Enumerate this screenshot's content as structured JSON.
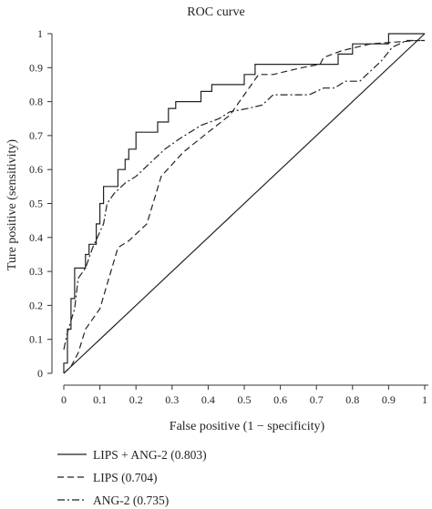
{
  "chart_data": {
    "type": "line",
    "title": "ROC curve",
    "xlabel": "False positive (1 − specificity)",
    "ylabel": "Ture positive (sensitivity)",
    "xlim": [
      0,
      1
    ],
    "ylim": [
      0,
      1
    ],
    "x_ticks": [
      "0",
      "0.1",
      "0.2",
      "0.3",
      "0.4",
      "0.5",
      "0.6",
      "0.7",
      "0.8",
      "0.9",
      "1"
    ],
    "y_ticks": [
      "0",
      "0.1",
      "0.2",
      "0.3",
      "0.4",
      "0.5",
      "0.6",
      "0.7",
      "0.8",
      "0.9",
      "1"
    ],
    "grid": false,
    "legend_position": "bottom-left",
    "series": [
      {
        "name": "LIPS + ANG-2 (0.803)",
        "style": "solid",
        "color": "#222222",
        "points": [
          [
            0,
            0
          ],
          [
            0,
            0.03
          ],
          [
            0.01,
            0.03
          ],
          [
            0.01,
            0.13
          ],
          [
            0.02,
            0.13
          ],
          [
            0.02,
            0.22
          ],
          [
            0.03,
            0.22
          ],
          [
            0.03,
            0.31
          ],
          [
            0.06,
            0.31
          ],
          [
            0.06,
            0.35
          ],
          [
            0.07,
            0.35
          ],
          [
            0.07,
            0.38
          ],
          [
            0.09,
            0.38
          ],
          [
            0.09,
            0.44
          ],
          [
            0.1,
            0.44
          ],
          [
            0.1,
            0.5
          ],
          [
            0.11,
            0.5
          ],
          [
            0.11,
            0.55
          ],
          [
            0.15,
            0.55
          ],
          [
            0.15,
            0.6
          ],
          [
            0.17,
            0.6
          ],
          [
            0.17,
            0.63
          ],
          [
            0.18,
            0.63
          ],
          [
            0.18,
            0.66
          ],
          [
            0.2,
            0.66
          ],
          [
            0.2,
            0.71
          ],
          [
            0.26,
            0.71
          ],
          [
            0.26,
            0.74
          ],
          [
            0.29,
            0.74
          ],
          [
            0.29,
            0.78
          ],
          [
            0.31,
            0.78
          ],
          [
            0.31,
            0.8
          ],
          [
            0.38,
            0.8
          ],
          [
            0.38,
            0.83
          ],
          [
            0.41,
            0.83
          ],
          [
            0.41,
            0.85
          ],
          [
            0.5,
            0.85
          ],
          [
            0.5,
            0.88
          ],
          [
            0.53,
            0.88
          ],
          [
            0.53,
            0.91
          ],
          [
            0.76,
            0.91
          ],
          [
            0.76,
            0.94
          ],
          [
            0.8,
            0.94
          ],
          [
            0.8,
            0.97
          ],
          [
            0.9,
            0.97
          ],
          [
            0.9,
            1
          ],
          [
            1,
            1
          ]
        ]
      },
      {
        "name": "LIPS (0.704)",
        "style": "dashed",
        "color": "#222222",
        "points": [
          [
            0,
            0
          ],
          [
            0.02,
            0.02
          ],
          [
            0.04,
            0.06
          ],
          [
            0.06,
            0.13
          ],
          [
            0.1,
            0.19
          ],
          [
            0.15,
            0.37
          ],
          [
            0.18,
            0.39
          ],
          [
            0.23,
            0.44
          ],
          [
            0.27,
            0.58
          ],
          [
            0.33,
            0.65
          ],
          [
            0.4,
            0.71
          ],
          [
            0.46,
            0.76
          ],
          [
            0.5,
            0.82
          ],
          [
            0.54,
            0.88
          ],
          [
            0.58,
            0.88
          ],
          [
            0.62,
            0.89
          ],
          [
            0.66,
            0.9
          ],
          [
            0.71,
            0.91
          ],
          [
            0.72,
            0.93
          ],
          [
            0.77,
            0.95
          ],
          [
            0.85,
            0.97
          ],
          [
            0.98,
            0.98
          ],
          [
            1,
            0.98
          ]
        ]
      },
      {
        "name": "ANG-2 (0.735)",
        "style": "dashdot",
        "color": "#222222",
        "points": [
          [
            0,
            0.07
          ],
          [
            0.01,
            0.12
          ],
          [
            0.03,
            0.19
          ],
          [
            0.04,
            0.28
          ],
          [
            0.06,
            0.31
          ],
          [
            0.08,
            0.37
          ],
          [
            0.11,
            0.44
          ],
          [
            0.12,
            0.5
          ],
          [
            0.14,
            0.53
          ],
          [
            0.17,
            0.56
          ],
          [
            0.2,
            0.58
          ],
          [
            0.24,
            0.62
          ],
          [
            0.28,
            0.66
          ],
          [
            0.32,
            0.69
          ],
          [
            0.35,
            0.71
          ],
          [
            0.38,
            0.73
          ],
          [
            0.43,
            0.75
          ],
          [
            0.46,
            0.77
          ],
          [
            0.51,
            0.78
          ],
          [
            0.55,
            0.79
          ],
          [
            0.58,
            0.82
          ],
          [
            0.62,
            0.82
          ],
          [
            0.68,
            0.82
          ],
          [
            0.7,
            0.83
          ],
          [
            0.72,
            0.84
          ],
          [
            0.75,
            0.84
          ],
          [
            0.78,
            0.86
          ],
          [
            0.82,
            0.86
          ],
          [
            0.85,
            0.89
          ],
          [
            0.88,
            0.92
          ],
          [
            0.91,
            0.96
          ],
          [
            0.95,
            0.98
          ],
          [
            1,
            0.98
          ]
        ]
      },
      {
        "name": "",
        "style": "solid",
        "color": "#222222",
        "points": [
          [
            0,
            0
          ],
          [
            1,
            1
          ]
        ]
      }
    ]
  }
}
